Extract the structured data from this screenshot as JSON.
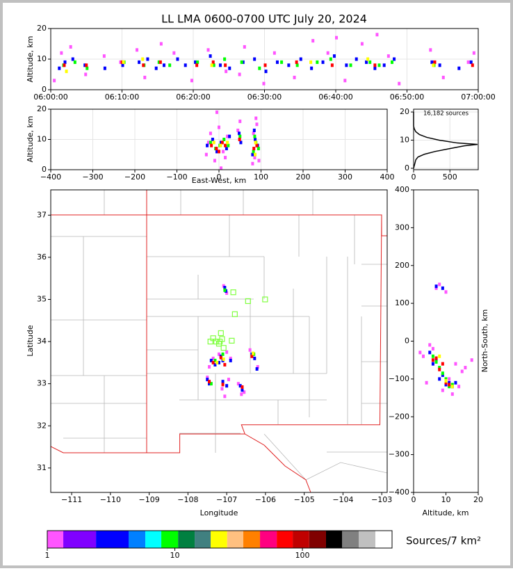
{
  "chart_data": [
    {
      "type": "scatter",
      "title": "LL LMA 0600-0700 UTC July 20, 2024",
      "ylabel": "Altitude, km",
      "xlim": [
        0,
        60
      ],
      "ylim": [
        0,
        20
      ],
      "grid": true,
      "xticks": [
        {
          "value": 0,
          "label": "06:00:00"
        },
        {
          "value": 10,
          "label": "06:10:00"
        },
        {
          "value": 20,
          "label": "06:20:00"
        },
        {
          "value": 30,
          "label": "06:30:00"
        },
        {
          "value": 40,
          "label": "06:40:00"
        },
        {
          "value": 50,
          "label": "06:50:00"
        },
        {
          "value": 60,
          "label": "07:00:00"
        }
      ],
      "yticks": [
        0,
        10,
        20
      ],
      "series": [
        {
          "color": "#ff55ff",
          "x": [
            0.5,
            1.5,
            2.8,
            4.9,
            7.5,
            9.8,
            12.1,
            13.2,
            15.5,
            17.3,
            19.8,
            22.1,
            24.6,
            27.2,
            29.9,
            31.4,
            34.2,
            36.8,
            38.9,
            41.3,
            43.7,
            45.8,
            47.4,
            48.9,
            53.3,
            55.1,
            58.6,
            59.4,
            26.5,
            40.1
          ],
          "y": [
            3,
            12,
            14,
            5,
            11,
            9,
            13,
            4,
            15,
            12,
            3,
            13,
            6,
            14,
            2,
            12,
            4,
            16,
            12,
            3,
            15,
            18,
            11,
            2,
            13,
            4,
            9,
            12,
            5,
            17
          ]
        },
        {
          "color": "#0000ff",
          "x": [
            1.2,
            2.0,
            3.1,
            4.8,
            7.6,
            10.1,
            12.4,
            13.6,
            14.8,
            15.9,
            17.8,
            18.9,
            20.3,
            22.4,
            23.8,
            25.1,
            27.0,
            28.6,
            30.2,
            31.8,
            33.4,
            35.1,
            36.6,
            38.2,
            39.8,
            41.5,
            42.9,
            44.3,
            45.5,
            46.8,
            48.2,
            53.5,
            54.6,
            57.3,
            59.0
          ],
          "y": [
            7,
            9,
            10,
            8,
            7,
            8,
            9,
            10,
            7,
            8,
            10,
            8,
            9,
            11,
            8,
            7,
            9,
            10,
            6,
            9,
            8,
            10,
            7,
            9,
            11,
            8,
            10,
            9,
            7,
            8,
            10,
            9,
            8,
            7,
            9
          ]
        },
        {
          "color": "#00ff00",
          "x": [
            1.8,
            3.4,
            5.1,
            10.3,
            13.1,
            15.2,
            16.7,
            20.6,
            22.9,
            24.4,
            26.8,
            29.3,
            32.4,
            34.6,
            37.4,
            39.3,
            42.1,
            44.8,
            46.1,
            47.9,
            53.8
          ],
          "y": [
            8,
            9,
            7,
            9,
            8,
            9,
            8,
            9,
            8,
            10,
            9,
            7,
            9,
            8,
            9,
            10,
            8,
            9,
            8,
            9,
            8
          ]
        },
        {
          "color": "#ff0000",
          "x": [
            1.9,
            5.0,
            10.0,
            13.0,
            15.4,
            20.5,
            22.8,
            24.5,
            30.1,
            34.5,
            39.5,
            45.5,
            53.9,
            59.2
          ],
          "y": [
            8,
            8,
            9,
            8,
            9,
            8,
            9,
            8,
            8,
            9,
            8,
            8,
            9,
            8
          ]
        },
        {
          "color": "#ffff00",
          "x": [
            2.2,
            10.2,
            12.9,
            22.6,
            36.5,
            44.5,
            53.7
          ],
          "y": [
            6,
            9,
            10,
            8,
            9,
            10,
            8
          ]
        }
      ]
    },
    {
      "type": "scatter",
      "xlabel": "East-West, km",
      "ylabel": "Altitude, km",
      "xlim": [
        -400,
        400
      ],
      "ylim": [
        0,
        20
      ],
      "grid": true,
      "xticks": [
        {
          "value": -400,
          "label": "−400"
        },
        {
          "value": -300,
          "label": "−300"
        },
        {
          "value": -200,
          "label": "−200"
        },
        {
          "value": -100,
          "label": "−100"
        },
        0,
        100,
        200,
        300,
        400
      ],
      "yticks": [
        0,
        10,
        20
      ],
      "series": [
        {
          "color": "#ff55ff",
          "x": [
            -30,
            -20,
            -10,
            0,
            10,
            20,
            -25,
            15,
            45,
            50,
            80,
            85,
            90,
            95,
            88,
            82,
            5,
            -5
          ],
          "y": [
            5,
            12,
            3,
            14,
            6,
            11,
            9,
            4,
            13,
            16,
            2,
            4,
            15,
            3,
            17,
            12,
            0.5,
            19
          ]
        },
        {
          "color": "#0000ff",
          "x": [
            -28,
            -15,
            -5,
            5,
            18,
            25,
            48,
            52,
            80,
            86,
            92,
            84
          ],
          "y": [
            8,
            10,
            6,
            9,
            7,
            11,
            12,
            9,
            5,
            10,
            8,
            13
          ]
        },
        {
          "color": "#00ff00",
          "x": [
            -20,
            -8,
            2,
            12,
            22,
            50,
            82,
            88,
            94,
            85
          ],
          "y": [
            9,
            7,
            8,
            10,
            8,
            11,
            6,
            9,
            7,
            11
          ]
        },
        {
          "color": "#ff0000",
          "x": [
            -18,
            -6,
            0,
            8,
            15,
            49,
            83,
            90
          ],
          "y": [
            8,
            7,
            6,
            9,
            8,
            10,
            7,
            8
          ]
        },
        {
          "color": "#ffff00",
          "x": [
            -12,
            4,
            20,
            87,
            86
          ],
          "y": [
            9,
            8,
            9,
            9,
            5
          ]
        }
      ]
    },
    {
      "type": "line",
      "annotation": "16,182 sources",
      "xlim": [
        0,
        890
      ],
      "ylim": [
        -0.5,
        21
      ],
      "grid": true,
      "xticks": [
        0,
        500
      ],
      "yticks": [
        0,
        10,
        20
      ],
      "series": [
        {
          "color": "#000000",
          "x": [
            0,
            10,
            20,
            30,
            60,
            150,
            300,
            500,
            700,
            880,
            600,
            350,
            180,
            80,
            30,
            10,
            0,
            0
          ],
          "y": [
            0,
            1,
            2,
            3,
            4,
            5,
            6,
            7,
            8,
            8.5,
            9,
            10,
            11,
            12,
            13,
            14,
            15,
            20
          ]
        }
      ]
    },
    {
      "type": "scatter",
      "xlabel": "Longitude",
      "ylabel": "Latitude",
      "xlim": [
        -111.54,
        -102.86
      ],
      "ylim": [
        30.42,
        37.6
      ],
      "grid": false,
      "xticks": [
        {
          "value": -111,
          "label": "−111"
        },
        {
          "value": -110,
          "label": "−110"
        },
        {
          "value": -109,
          "label": "−109"
        },
        {
          "value": -108,
          "label": "−108"
        },
        {
          "value": -107,
          "label": "−107"
        },
        {
          "value": -106,
          "label": "−106"
        },
        {
          "value": -105,
          "label": "−105"
        },
        {
          "value": -104,
          "label": "−104"
        },
        {
          "value": -103,
          "label": "−103"
        }
      ],
      "yticks": [
        31,
        32,
        33,
        34,
        35,
        36,
        37
      ],
      "series": [
        {
          "color": "#ff55ff",
          "x": [
            -107.08,
            -107.0,
            -107.45,
            -107.2,
            -107.0,
            -106.9,
            -107.5,
            -107.12,
            -106.95,
            -106.7,
            -106.55,
            -106.4,
            -106.2,
            -107.35,
            -107.05,
            -106.62
          ],
          "y": [
            35.32,
            35.15,
            33.4,
            33.7,
            33.75,
            33.6,
            33.15,
            32.88,
            33.1,
            33.0,
            32.8,
            33.8,
            33.4,
            33.6,
            32.7,
            32.75
          ]
        },
        {
          "color": "#0000ff",
          "x": [
            -107.05,
            -107.02,
            -107.4,
            -107.3,
            -107.15,
            -107.1,
            -107.5,
            -107.45,
            -107.1,
            -107.0,
            -106.65,
            -106.6,
            -106.35,
            -106.28,
            -106.22,
            -107.2,
            -106.9
          ],
          "y": [
            35.28,
            35.2,
            33.55,
            33.45,
            33.65,
            33.55,
            33.1,
            33.0,
            33.05,
            32.95,
            32.95,
            32.85,
            33.7,
            33.6,
            33.35,
            33.5,
            33.55
          ]
        },
        {
          "color": "#00ff00",
          "x": [
            -107.3,
            -107.1,
            -107.4,
            -106.3,
            -107.05
          ],
          "y": [
            33.55,
            33.7,
            33.0,
            33.7,
            35.22
          ]
        },
        {
          "color": "#ff0000",
          "x": [
            -107.35,
            -107.15,
            -107.05,
            -107.45,
            -107.1,
            -106.35,
            -106.6
          ],
          "y": [
            33.5,
            33.62,
            33.45,
            33.05,
            32.98,
            33.65,
            32.92
          ]
        },
        {
          "color": "#ffff00",
          "x": [
            -107.25,
            -107.08,
            -106.32
          ],
          "y": [
            33.5,
            33.58,
            33.72
          ]
        },
        {
          "color": "#80ff40",
          "marker": "square",
          "x": [
            -106.83,
            -106.45,
            -106.01,
            -106.79,
            -107.15,
            -107.35,
            -107.42,
            -107.27,
            -107.18,
            -107.08,
            -106.87,
            -107.12,
            -107.2
          ],
          "y": [
            35.17,
            34.96,
            35.0,
            34.65,
            34.2,
            34.08,
            34.0,
            34.0,
            34.0,
            33.85,
            34.02,
            34.06,
            33.95
          ]
        }
      ]
    },
    {
      "type": "scatter",
      "xlabel": "Altitude, km",
      "ylabel": "North-South, km",
      "ylabel_side": "right",
      "xlim": [
        0,
        20
      ],
      "ylim": [
        -400,
        400
      ],
      "grid": false,
      "xticks": [
        0,
        10,
        20
      ],
      "yticks": [
        {
          "value": -400,
          "label": "−400"
        },
        {
          "value": -300,
          "label": "−300"
        },
        {
          "value": -200,
          "label": "−200"
        },
        {
          "value": -100,
          "label": "−100"
        },
        0,
        100,
        200,
        300,
        400
      ],
      "series": [
        {
          "color": "#ff55ff",
          "x": [
            3,
            6,
            9,
            11,
            13,
            15,
            2,
            4,
            12,
            16,
            8,
            10,
            7,
            5,
            18,
            14
          ],
          "y": [
            -40,
            -20,
            -130,
            -100,
            -60,
            -80,
            -30,
            -110,
            -140,
            -70,
            150,
            130,
            140,
            -10,
            -50,
            -120
          ]
        },
        {
          "color": "#0000ff",
          "x": [
            5,
            7,
            9,
            11,
            12,
            6,
            8,
            10,
            13,
            9,
            7
          ],
          "y": [
            -30,
            -50,
            -90,
            -110,
            -120,
            -60,
            -100,
            -115,
            -110,
            140,
            145
          ]
        },
        {
          "color": "#00ff00",
          "x": [
            6,
            8,
            10,
            12,
            7,
            9,
            11
          ],
          "y": [
            -40,
            -70,
            -100,
            -115,
            -55,
            -85,
            -120
          ]
        },
        {
          "color": "#ff0000",
          "x": [
            7,
            9,
            10,
            11,
            8,
            6
          ],
          "y": [
            -45,
            -60,
            -110,
            -115,
            -75,
            -50
          ]
        },
        {
          "color": "#ffff00",
          "x": [
            8,
            10,
            12
          ],
          "y": [
            -40,
            -105,
            -120
          ]
        }
      ]
    },
    {
      "type": "colorbar",
      "label": "Sources/7 km²",
      "scale": "log",
      "xlim": [
        1,
        504
      ],
      "xticks": [
        1,
        10,
        100
      ],
      "bounds": [
        1,
        1.335,
        2.41,
        4.34,
        5.87,
        7.83,
        10.6,
        14.3,
        19.1,
        25.7,
        34.4,
        46.5,
        62.9,
        83.9,
        113,
        153,
        205,
        276,
        373,
        504
      ],
      "colors": [
        "#ff55ff",
        "#8000ff",
        "#0000ff",
        "#0080ff",
        "#00ffff",
        "#00ff00",
        "#008040",
        "#408080",
        "#ffff00",
        "#ffc080",
        "#ff8000",
        "#ff0080",
        "#ff0000",
        "#c00000",
        "#800000",
        "#000000",
        "#808080",
        "#c0c0c0",
        "#ffffff"
      ]
    }
  ]
}
